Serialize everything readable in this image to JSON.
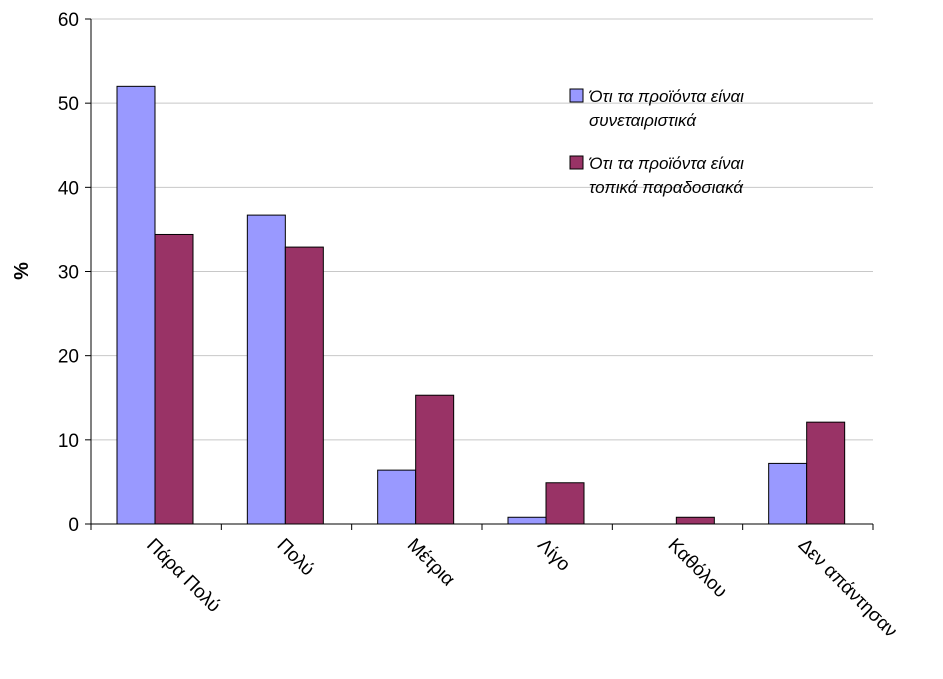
{
  "chart_data": {
    "type": "bar",
    "title": "",
    "xlabel": "",
    "ylabel": "%",
    "ylim": [
      0,
      60
    ],
    "yticks": [
      0,
      10,
      20,
      30,
      40,
      50,
      60
    ],
    "grid": true,
    "legend_position": "top-right",
    "categories": [
      "Πάρα Πολύ",
      "Πολύ",
      "Μέτρια",
      "Λίγο",
      "Καθόλου",
      "Δεν απάντησαν"
    ],
    "series": [
      {
        "name": [
          "Ότι τα προϊόντα είναι",
          "συνεταιριστικά"
        ],
        "color": "#9999ff",
        "values": [
          52,
          36.7,
          6.4,
          0.8,
          0,
          7.2
        ]
      },
      {
        "name": [
          "Ότι τα προϊόντα είναι",
          "τοπικά παραδοσιακά"
        ],
        "color": "#993366",
        "values": [
          34.4,
          32.9,
          15.3,
          4.9,
          0.8,
          12.1
        ]
      }
    ]
  }
}
